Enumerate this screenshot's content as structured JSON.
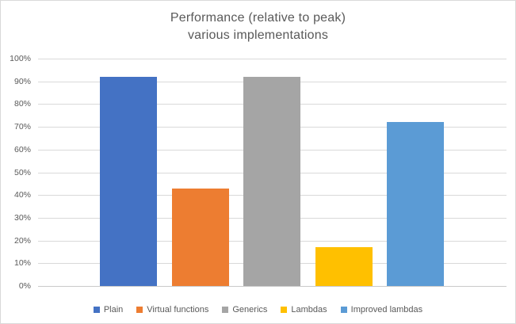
{
  "chart": {
    "title_line1": "Performance (relative to peak)",
    "title_line2": "various implementations"
  },
  "colors": {
    "background": "#FFFFFF",
    "chart_border": "#D9D9D9",
    "gridline": "#D9D9D9",
    "axis_line": "#C9C9C9",
    "title_text": "#595959",
    "axis_text": "#595959",
    "legend_text": "#595959"
  },
  "chart_data": {
    "type": "bar",
    "title": "Performance (relative to peak)",
    "subtitle": "various implementations",
    "categories": [
      "Plain",
      "Virtual functions",
      "Generics",
      "Lambdas",
      "Improved lambdas"
    ],
    "values": [
      92,
      43,
      92,
      17,
      72
    ],
    "unit": "%",
    "series_colors": [
      "#4472C4",
      "#ED7D31",
      "#A5A5A5",
      "#FFC000",
      "#5B9BD5"
    ],
    "xlabel": "",
    "ylabel": "",
    "ylim": [
      0,
      100
    ],
    "yticks": [
      0,
      10,
      20,
      30,
      40,
      50,
      60,
      70,
      80,
      90,
      100
    ],
    "ytick_suffix": "%",
    "grid": true,
    "legend_position": "bottom",
    "legend_entries": [
      "Plain",
      "Virtual functions",
      "Generics",
      "Lambdas",
      "Improved lambdas"
    ]
  }
}
